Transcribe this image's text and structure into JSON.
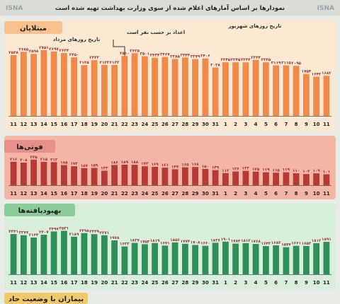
{
  "header": {
    "title": "نمودارها بر اساس آمارهای اعلام شده از سوی وزارت بهداشت تهیه شده است",
    "watermark": "ISNA"
  },
  "colors": {
    "panel1_bg": "#fbe9d3",
    "panel1_bar": "#f08a4b",
    "panel1_title_bg": "#f6c18f",
    "panel2_bg": "#f3b5a5",
    "panel2_bar": "#b53a34",
    "panel2_title_bg": "#e7908b",
    "panel3_bg": "#d8efdb",
    "panel3_bar": "#2f8f58",
    "panel3_title_bg": "#8ccc9b",
    "panel4_title_bg": "#f0c96a",
    "value_text": "#9a2d2f",
    "axis_text": "#222222"
  },
  "panels": [
    {
      "title": "مبتلایان",
      "annotations": {
        "mordad": "تاریخ روزهای مرداد",
        "shahrivar": "تاریخ روزهای شهریور",
        "arrow": "اعداد بر حسب نفر است"
      }
    },
    {
      "title": "فوتی‌ها"
    },
    {
      "title": "بهبودیافته‌ها"
    },
    {
      "title": "بیماران با وضعیت حاد"
    }
  ],
  "chart_data": [
    {
      "type": "bar",
      "title": "مبتلایان",
      "categories": [
        "11",
        "12",
        "13",
        "14",
        "15",
        "16",
        "17",
        "18",
        "19",
        "20",
        "21",
        "22",
        "23",
        "24",
        "25",
        "26",
        "27",
        "28",
        "29",
        "30",
        "31",
        "1",
        "2",
        "3",
        "4",
        "5",
        "6",
        "7",
        "8",
        "9",
        "10",
        "11"
      ],
      "values": [
        2548,
        2685,
        2598,
        2751,
        2697,
        2634,
        2450,
        2125,
        2333,
        2133,
        2133,
        2510,
        2625,
        2501,
        2434,
        2467,
        2385,
        2444,
        2379,
        2406,
        2028,
        2245,
        2245,
        2244,
        2344,
        2245,
        2119,
        2115,
        2095,
        1754,
        1642,
        1682
      ],
      "value_labels": [
        "۲۵۴۸",
        "۲۶۸۵",
        "۲۵۹۸",
        "۲۷۵۱",
        "۲۶۹۷",
        "۲۶۳۴",
        "۲۴۵۰",
        "۲۱۲۵",
        "۲۳۳۳",
        "۲۱۳۳",
        "۲۱۳۳",
        "۲۵۱۰",
        "۲۶۲۵",
        "۲۵۰۱",
        "۲۴۳۴",
        "۲۴۶۷",
        "۲۳۸۵",
        "۲۴۴۴",
        "۲۳۷۹",
        "۲۴۰۶",
        "۲۰۲۸",
        "۲۲۴۵",
        "۲۲۴۵",
        "۲۲۴۴",
        "۲۳۴۴",
        "۲۲۴۵",
        "۲۱۱۹",
        "۲۱۱۵",
        "۲۰۹۵",
        "۱۷۵۴",
        "۱۶۴۲",
        "۱۶۸۲"
      ],
      "ylim": [
        0,
        2900
      ]
    },
    {
      "type": "bar",
      "title": "فوتی‌ها",
      "categories": [
        "11",
        "12",
        "13",
        "14",
        "15",
        "16",
        "17",
        "18",
        "19",
        "20",
        "21",
        "22",
        "23",
        "24",
        "25",
        "26",
        "27",
        "28",
        "29",
        "30",
        "31",
        "1",
        "2",
        "3",
        "4",
        "5",
        "6",
        "7",
        "8",
        "9",
        "10",
        "11"
      ],
      "values": [
        216,
        208,
        235,
        215,
        212,
        185,
        174,
        157,
        159,
        133,
        186,
        189,
        188,
        174,
        169,
        161,
        147,
        165,
        168,
        150,
        139,
        112,
        126,
        132,
        125,
        119,
        115,
        119,
        110,
        103,
        109,
        101
      ],
      "value_labels": [
        "۲۱۶",
        "۲۰۸",
        "۲۳۵",
        "۲۱۵",
        "۲۱۲",
        "۱۸۵",
        "۱۷۴",
        "۱۵۷",
        "۱۵۹",
        "۱۳۳",
        "۱۸۶",
        "۱۸۹",
        "۱۸۸",
        "۱۷۴",
        "۱۶۹",
        "۱۶۱",
        "۱۴۷",
        "۱۶۵",
        "۱۶۸",
        "۱۵۰",
        "۱۳۹",
        "۱۱۲",
        "۱۲۶",
        "۱۳۲",
        "۱۲۵",
        "۱۱۹",
        "۱۱۵",
        "۱۱۹",
        "۱۱۰",
        "۱۰۳",
        "۱۰۹",
        "۱۰۱"
      ],
      "ylim": [
        0,
        260
      ]
    },
    {
      "type": "bar",
      "title": "بهبودیافته‌ها",
      "categories": [
        "11",
        "12",
        "13",
        "14",
        "15",
        "16",
        "17",
        "18",
        "19",
        "20",
        "21",
        "22",
        "23",
        "24",
        "25",
        "26",
        "27",
        "28",
        "29",
        "30",
        "31",
        "1",
        "2",
        "3",
        "4",
        "5",
        "6",
        "7",
        "8",
        "9",
        "10",
        "11"
      ],
      "values": [
        2341,
        2277,
        2143,
        2307,
        2497,
        2531,
        2189,
        2398,
        2339,
        2271,
        1978,
        1623,
        1827,
        1753,
        1819,
        1671,
        1856,
        1774,
        1708,
        1660,
        1836,
        1901,
        1784,
        1812,
        1768,
        1643,
        1683,
        1577,
        1661,
        1653,
        1812,
        1891
      ],
      "value_labels": [
        "۲۳۴۱",
        "۲۲۷۷",
        "۲۱۴۳",
        "۲۳۰۷",
        "۲۴۹۷",
        "۲۵۳۱",
        "۲۱۸۹",
        "۲۳۹۸",
        "۲۳۳۹",
        "۲۲۷۱",
        "۱۹۷۸",
        "۱۶۲۳",
        "۱۸۲۷",
        "۱۷۵۳",
        "۱۸۱۹",
        "۱۶۷۱",
        "۱۸۵۶",
        "۱۷۷۴",
        "۱۷۰۸",
        "۱۶۶۰",
        "۱۸۳۶",
        "۱۹۰۱",
        "۱۷۸۴",
        "۱۸۱۲",
        "۱۷۶۸",
        "۱۶۴۳",
        "۱۶۸۳",
        "۱۵۷۷",
        "۱۶۶۱",
        "۱۶۵۳",
        "۱۸۱۲",
        "۱۸۹۱"
      ],
      "ylim": [
        0,
        2800
      ]
    }
  ]
}
